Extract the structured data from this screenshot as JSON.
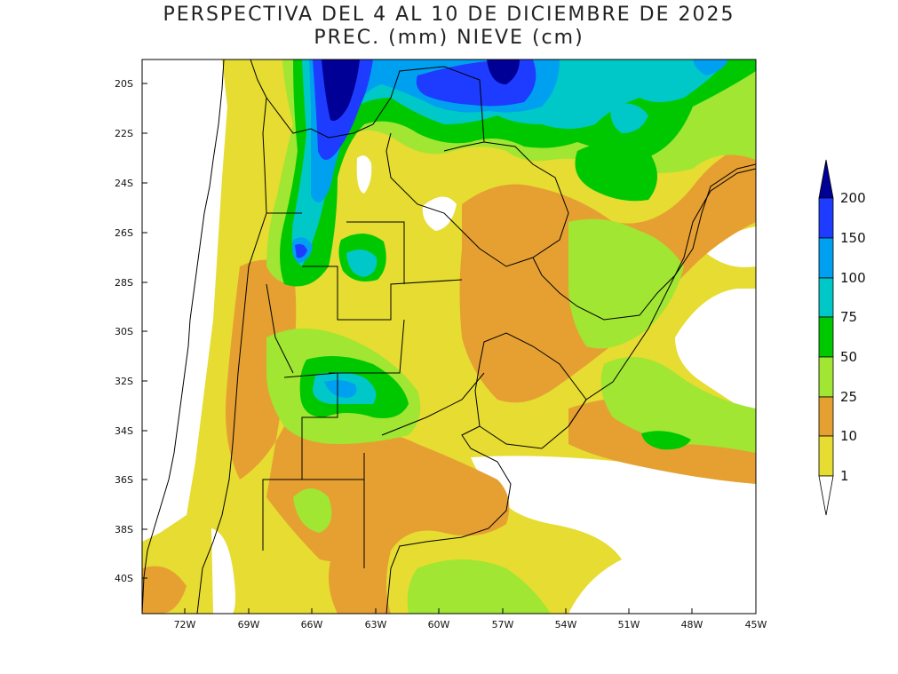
{
  "title": {
    "line1": "PERSPECTIVA DEL 4 AL 10 DE DICIEMBRE DE 2025",
    "line2": "PREC. (mm) NIEVE (cm)"
  },
  "map": {
    "lat_ticks": [
      "20S",
      "22S",
      "24S",
      "26S",
      "28S",
      "30S",
      "32S",
      "34S",
      "36S",
      "38S",
      "40S"
    ],
    "lon_ticks": [
      "72W",
      "69W",
      "66W",
      "63W",
      "60W",
      "57W",
      "54W",
      "51W",
      "48W",
      "45W"
    ],
    "region": "South America – Southern Cone"
  },
  "colorbar": {
    "labels": [
      "1",
      "10",
      "25",
      "50",
      "75",
      "100",
      "150",
      "200"
    ],
    "colors": {
      "lt1": "#ffffff",
      "c1": "#e6dc32",
      "c10": "#e6a032",
      "c25": "#a0e632",
      "c50": "#00c800",
      "c75": "#00c8c8",
      "c100": "#00a0f0",
      "c150": "#1e3cff",
      "c200": "#000096"
    }
  }
}
